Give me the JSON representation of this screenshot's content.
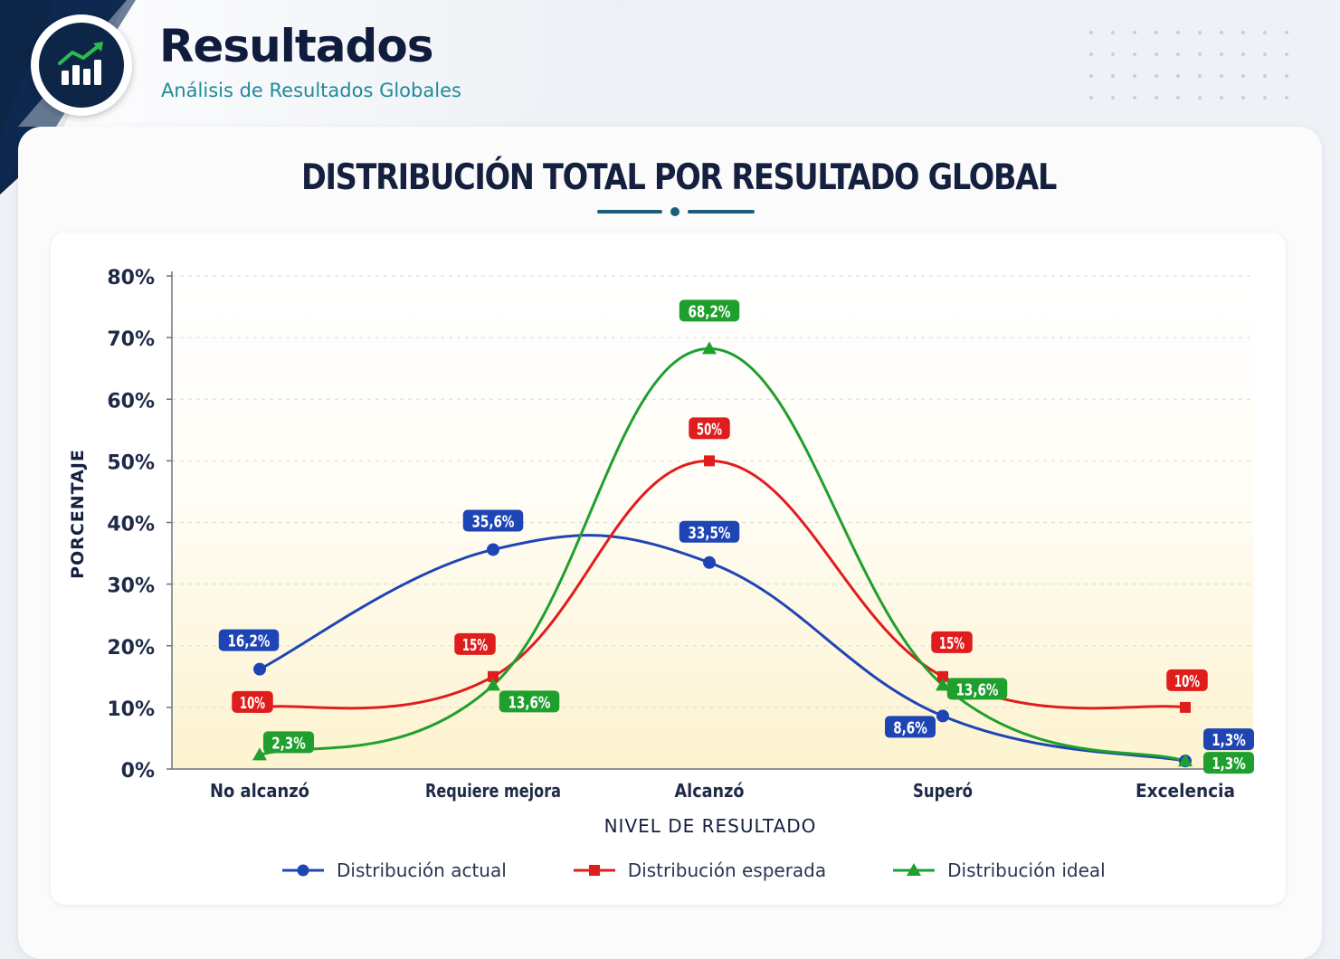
{
  "header": {
    "title": "Resultados",
    "subtitle": "Análisis de Resultados Globales",
    "logo_icon": "bar-chart-trend-up-icon"
  },
  "colors": {
    "navy": "#0d2547",
    "teal": "#1f8a9b",
    "actual": "#1f45b5",
    "esperada": "#e01d1d",
    "ideal": "#1fa02e"
  },
  "chart_data": {
    "type": "line",
    "title": "DISTRIBUCIÓN TOTAL POR RESULTADO GLOBAL",
    "xlabel": "NIVEL DE RESULTADO",
    "ylabel": "PORCENTAJE",
    "categories": [
      "No alcanzó",
      "Requiere mejora",
      "Alcanzó",
      "Superó",
      "Excelencia"
    ],
    "y_ticks": [
      "0%",
      "10%",
      "20%",
      "30%",
      "40%",
      "50%",
      "60%",
      "70%",
      "80%"
    ],
    "ylim": [
      0,
      80
    ],
    "grid": "horizontal dashed",
    "legend_position": "bottom",
    "series": [
      {
        "name": "Distribución actual",
        "color": "#1f45b5",
        "marker": "circle",
        "values": [
          16.2,
          35.6,
          33.5,
          8.6,
          1.3
        ],
        "labels": [
          "16,2%",
          "35,6%",
          "33,5%",
          "8,6%",
          "1,3%"
        ]
      },
      {
        "name": "Distribución esperada",
        "color": "#e01d1d",
        "marker": "square",
        "values": [
          10,
          15,
          50,
          15,
          10
        ],
        "labels": [
          "10%",
          "15%",
          "50%",
          "15%",
          "10%"
        ]
      },
      {
        "name": "Distribución ideal",
        "color": "#1fa02e",
        "marker": "triangle",
        "values": [
          2.3,
          13.6,
          68.2,
          13.6,
          1.3
        ],
        "labels": [
          "2,3%",
          "13,6%",
          "68,2%",
          "13,6%",
          "1,3%"
        ]
      }
    ]
  }
}
